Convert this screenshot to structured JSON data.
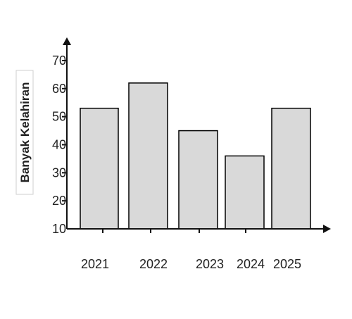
{
  "chart_data": {
    "type": "bar",
    "title": "",
    "xlabel": "",
    "ylabel": "Banyak Kelahiran",
    "categories": [
      "2021",
      "2022",
      "2023",
      "2024",
      "2025"
    ],
    "values": [
      53,
      62,
      45,
      36,
      53
    ],
    "ylim": [
      10,
      70
    ],
    "yticks": [
      "10",
      "20",
      "30",
      "40",
      "50",
      "60",
      "70"
    ],
    "grid": false,
    "legend": "none",
    "bar_fill": "#d9d9d9",
    "bar_stroke": "#000000",
    "axis_color": "#111111"
  }
}
